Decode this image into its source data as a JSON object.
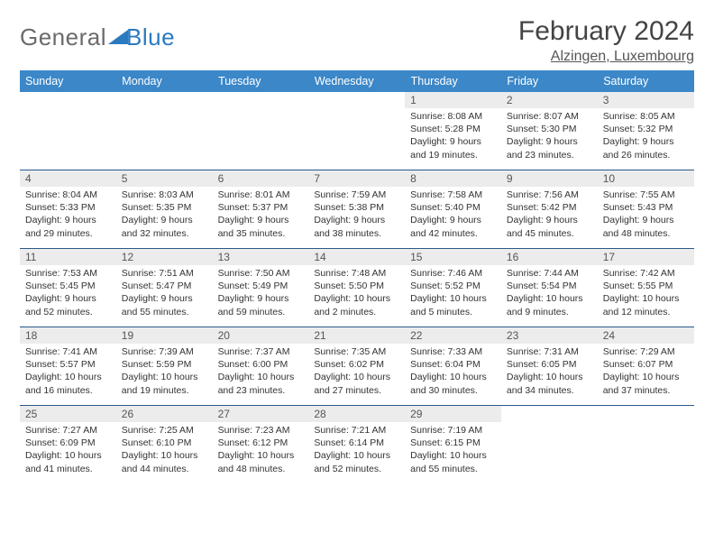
{
  "logo": {
    "text1": "General",
    "text2": "Blue"
  },
  "title": "February 2024",
  "subtitle": "Alzingen, Luxembourg",
  "colors": {
    "header_bg": "#3b87c8",
    "header_text": "#ffffff",
    "daynum_bg": "#ececec",
    "daynum_text": "#555555",
    "border": "#2a5a8a",
    "logo_gray": "#6b6b6b",
    "logo_blue": "#2a7ac0",
    "body_text": "#333333"
  },
  "weekdays": [
    "Sunday",
    "Monday",
    "Tuesday",
    "Wednesday",
    "Thursday",
    "Friday",
    "Saturday"
  ],
  "weeks": [
    [
      null,
      null,
      null,
      null,
      {
        "d": "1",
        "sr": "Sunrise: 8:08 AM",
        "ss": "Sunset: 5:28 PM",
        "dl1": "Daylight: 9 hours",
        "dl2": "and 19 minutes."
      },
      {
        "d": "2",
        "sr": "Sunrise: 8:07 AM",
        "ss": "Sunset: 5:30 PM",
        "dl1": "Daylight: 9 hours",
        "dl2": "and 23 minutes."
      },
      {
        "d": "3",
        "sr": "Sunrise: 8:05 AM",
        "ss": "Sunset: 5:32 PM",
        "dl1": "Daylight: 9 hours",
        "dl2": "and 26 minutes."
      }
    ],
    [
      {
        "d": "4",
        "sr": "Sunrise: 8:04 AM",
        "ss": "Sunset: 5:33 PM",
        "dl1": "Daylight: 9 hours",
        "dl2": "and 29 minutes."
      },
      {
        "d": "5",
        "sr": "Sunrise: 8:03 AM",
        "ss": "Sunset: 5:35 PM",
        "dl1": "Daylight: 9 hours",
        "dl2": "and 32 minutes."
      },
      {
        "d": "6",
        "sr": "Sunrise: 8:01 AM",
        "ss": "Sunset: 5:37 PM",
        "dl1": "Daylight: 9 hours",
        "dl2": "and 35 minutes."
      },
      {
        "d": "7",
        "sr": "Sunrise: 7:59 AM",
        "ss": "Sunset: 5:38 PM",
        "dl1": "Daylight: 9 hours",
        "dl2": "and 38 minutes."
      },
      {
        "d": "8",
        "sr": "Sunrise: 7:58 AM",
        "ss": "Sunset: 5:40 PM",
        "dl1": "Daylight: 9 hours",
        "dl2": "and 42 minutes."
      },
      {
        "d": "9",
        "sr": "Sunrise: 7:56 AM",
        "ss": "Sunset: 5:42 PM",
        "dl1": "Daylight: 9 hours",
        "dl2": "and 45 minutes."
      },
      {
        "d": "10",
        "sr": "Sunrise: 7:55 AM",
        "ss": "Sunset: 5:43 PM",
        "dl1": "Daylight: 9 hours",
        "dl2": "and 48 minutes."
      }
    ],
    [
      {
        "d": "11",
        "sr": "Sunrise: 7:53 AM",
        "ss": "Sunset: 5:45 PM",
        "dl1": "Daylight: 9 hours",
        "dl2": "and 52 minutes."
      },
      {
        "d": "12",
        "sr": "Sunrise: 7:51 AM",
        "ss": "Sunset: 5:47 PM",
        "dl1": "Daylight: 9 hours",
        "dl2": "and 55 minutes."
      },
      {
        "d": "13",
        "sr": "Sunrise: 7:50 AM",
        "ss": "Sunset: 5:49 PM",
        "dl1": "Daylight: 9 hours",
        "dl2": "and 59 minutes."
      },
      {
        "d": "14",
        "sr": "Sunrise: 7:48 AM",
        "ss": "Sunset: 5:50 PM",
        "dl1": "Daylight: 10 hours",
        "dl2": "and 2 minutes."
      },
      {
        "d": "15",
        "sr": "Sunrise: 7:46 AM",
        "ss": "Sunset: 5:52 PM",
        "dl1": "Daylight: 10 hours",
        "dl2": "and 5 minutes."
      },
      {
        "d": "16",
        "sr": "Sunrise: 7:44 AM",
        "ss": "Sunset: 5:54 PM",
        "dl1": "Daylight: 10 hours",
        "dl2": "and 9 minutes."
      },
      {
        "d": "17",
        "sr": "Sunrise: 7:42 AM",
        "ss": "Sunset: 5:55 PM",
        "dl1": "Daylight: 10 hours",
        "dl2": "and 12 minutes."
      }
    ],
    [
      {
        "d": "18",
        "sr": "Sunrise: 7:41 AM",
        "ss": "Sunset: 5:57 PM",
        "dl1": "Daylight: 10 hours",
        "dl2": "and 16 minutes."
      },
      {
        "d": "19",
        "sr": "Sunrise: 7:39 AM",
        "ss": "Sunset: 5:59 PM",
        "dl1": "Daylight: 10 hours",
        "dl2": "and 19 minutes."
      },
      {
        "d": "20",
        "sr": "Sunrise: 7:37 AM",
        "ss": "Sunset: 6:00 PM",
        "dl1": "Daylight: 10 hours",
        "dl2": "and 23 minutes."
      },
      {
        "d": "21",
        "sr": "Sunrise: 7:35 AM",
        "ss": "Sunset: 6:02 PM",
        "dl1": "Daylight: 10 hours",
        "dl2": "and 27 minutes."
      },
      {
        "d": "22",
        "sr": "Sunrise: 7:33 AM",
        "ss": "Sunset: 6:04 PM",
        "dl1": "Daylight: 10 hours",
        "dl2": "and 30 minutes."
      },
      {
        "d": "23",
        "sr": "Sunrise: 7:31 AM",
        "ss": "Sunset: 6:05 PM",
        "dl1": "Daylight: 10 hours",
        "dl2": "and 34 minutes."
      },
      {
        "d": "24",
        "sr": "Sunrise: 7:29 AM",
        "ss": "Sunset: 6:07 PM",
        "dl1": "Daylight: 10 hours",
        "dl2": "and 37 minutes."
      }
    ],
    [
      {
        "d": "25",
        "sr": "Sunrise: 7:27 AM",
        "ss": "Sunset: 6:09 PM",
        "dl1": "Daylight: 10 hours",
        "dl2": "and 41 minutes."
      },
      {
        "d": "26",
        "sr": "Sunrise: 7:25 AM",
        "ss": "Sunset: 6:10 PM",
        "dl1": "Daylight: 10 hours",
        "dl2": "and 44 minutes."
      },
      {
        "d": "27",
        "sr": "Sunrise: 7:23 AM",
        "ss": "Sunset: 6:12 PM",
        "dl1": "Daylight: 10 hours",
        "dl2": "and 48 minutes."
      },
      {
        "d": "28",
        "sr": "Sunrise: 7:21 AM",
        "ss": "Sunset: 6:14 PM",
        "dl1": "Daylight: 10 hours",
        "dl2": "and 52 minutes."
      },
      {
        "d": "29",
        "sr": "Sunrise: 7:19 AM",
        "ss": "Sunset: 6:15 PM",
        "dl1": "Daylight: 10 hours",
        "dl2": "and 55 minutes."
      },
      null,
      null
    ]
  ]
}
